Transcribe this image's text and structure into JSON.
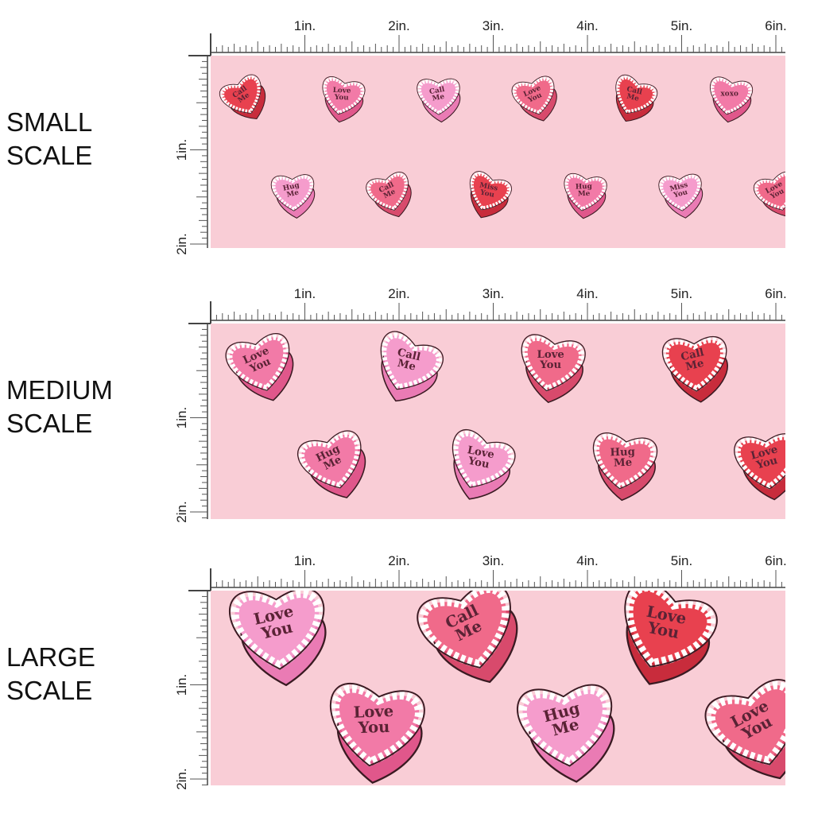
{
  "panels": [
    {
      "label": [
        "SMALL",
        "SCALE"
      ],
      "ruler_x": [
        "1in.",
        "2in.",
        "3in.",
        "4in.",
        "5in.",
        "6in."
      ],
      "ruler_y": [
        "1in.",
        "2in."
      ],
      "hearts": [
        [
          "Call",
          "Me"
        ],
        [
          "Love",
          "You"
        ],
        [
          "Call",
          "Me"
        ],
        [
          "Love",
          "You"
        ],
        [
          "Call",
          "Me"
        ],
        [
          "xoxo"
        ],
        [
          "Hug",
          "Me"
        ],
        [
          "Call",
          "Me"
        ],
        [
          "Miss",
          "You"
        ],
        [
          "Hug",
          "Me"
        ],
        [
          "Miss",
          "You"
        ],
        [
          "Love",
          "You"
        ]
      ]
    },
    {
      "label": [
        "MEDIUM",
        "SCALE"
      ],
      "ruler_x": [
        "1in.",
        "2in.",
        "3in.",
        "4in.",
        "5in.",
        "6in."
      ],
      "ruler_y": [
        "1in.",
        "2in."
      ],
      "hearts": [
        [
          "Love",
          "You"
        ],
        [
          "Call",
          "Me"
        ],
        [
          "Love",
          "You"
        ],
        [
          "Call",
          "Me"
        ],
        [
          "Hug",
          "Me"
        ],
        [
          "Love",
          "You"
        ],
        [
          "Hug",
          "Me"
        ],
        [
          "Love",
          "You"
        ]
      ]
    },
    {
      "label": [
        "LARGE",
        "SCALE"
      ],
      "ruler_x": [
        "1in.",
        "2in.",
        "3in.",
        "4in.",
        "5in.",
        "6in."
      ],
      "ruler_y": [
        "1in.",
        "2in."
      ],
      "hearts": [
        [
          "Love",
          "You"
        ],
        [
          "Call",
          "Me"
        ],
        [
          "Love",
          "You"
        ],
        [
          "Love",
          "You"
        ],
        [
          "Hug",
          "Me"
        ],
        [
          "Love",
          "You"
        ]
      ]
    }
  ]
}
